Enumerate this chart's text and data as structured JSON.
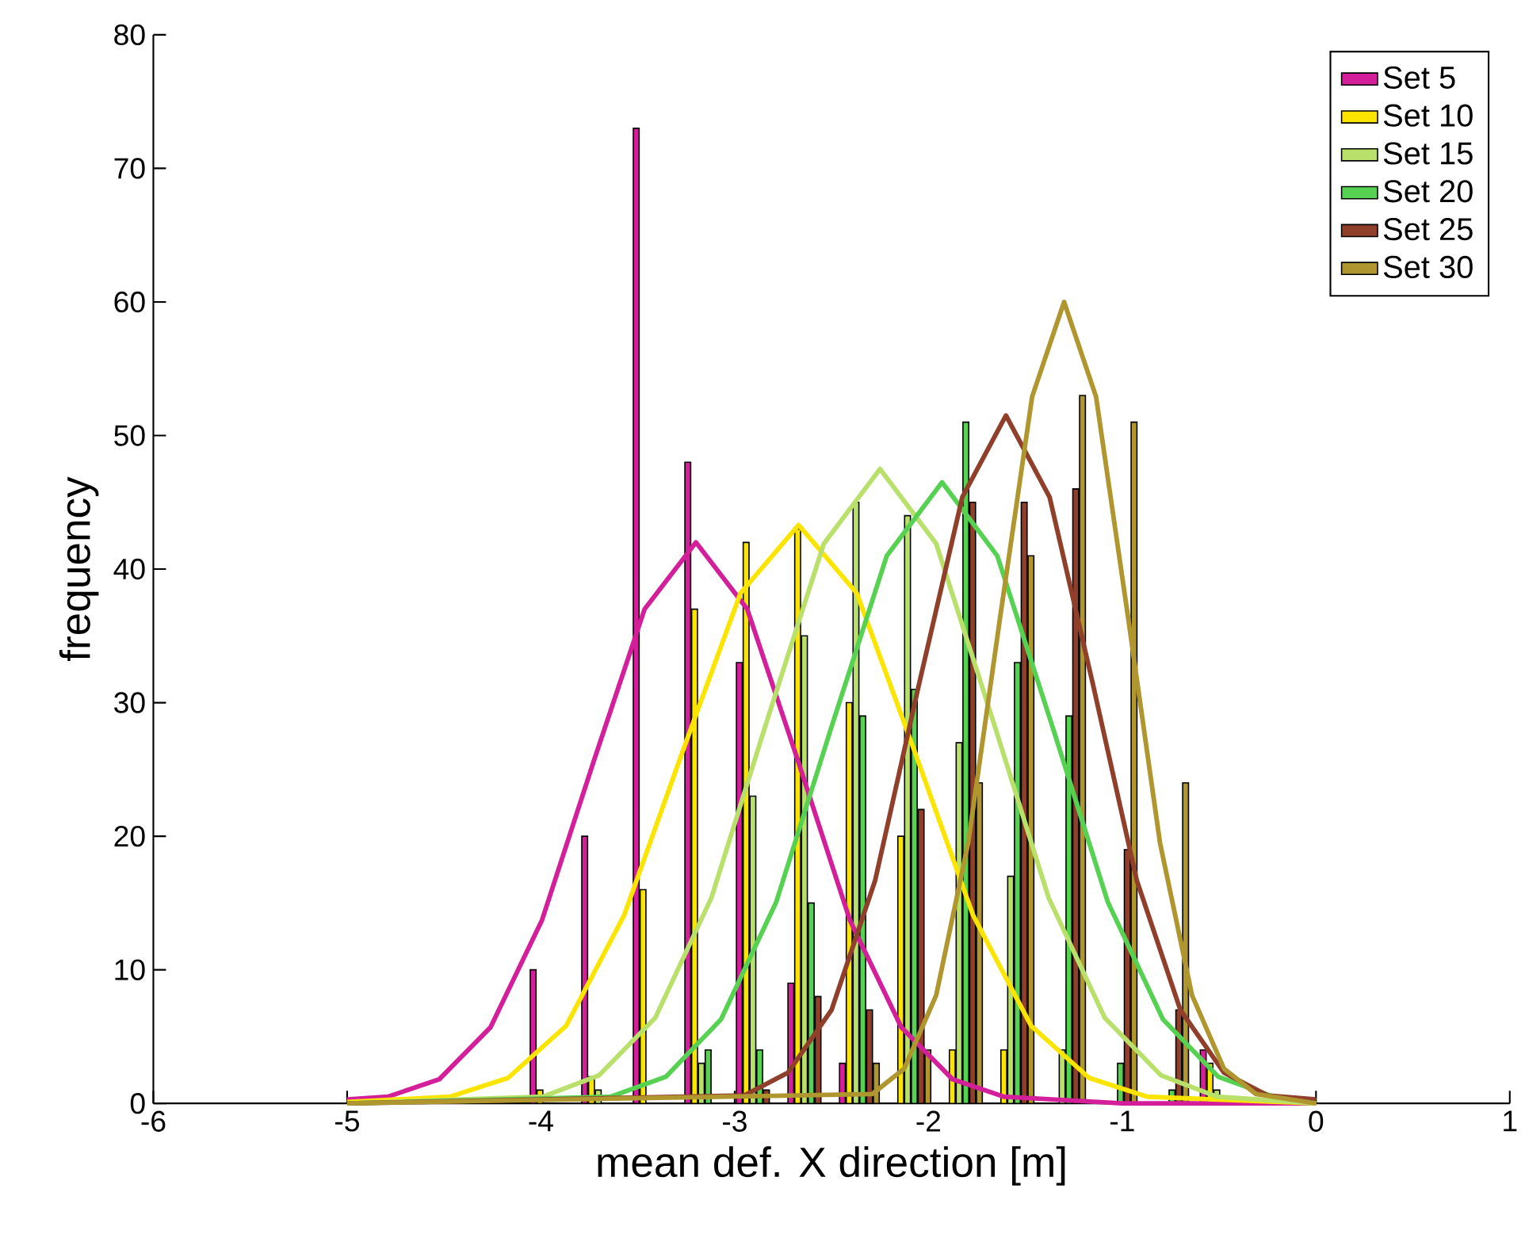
{
  "chart_data": {
    "type": "bar",
    "xlabel": "mean def. X direction [m]",
    "ylabel": "frequency",
    "xlim": [
      -6,
      1
    ],
    "xticks": [
      -6,
      -5,
      -4,
      -3,
      -2,
      -1,
      0,
      1
    ],
    "ylim": [
      0,
      80
    ],
    "yticks": [
      0,
      10,
      20,
      30,
      40,
      50,
      60,
      70,
      80
    ],
    "legend": "top right",
    "grid": false,
    "series": [
      {
        "name": "Set 5",
        "color": "#d41f9a",
        "x": [
          -4.04,
          -3.774,
          -3.508,
          -3.242,
          -2.976,
          -2.71,
          -2.444,
          -0.582
        ],
        "values": [
          10,
          20,
          73,
          48,
          33,
          9,
          3,
          4
        ]
      },
      {
        "name": "Set 10",
        "color": "#fbe500",
        "x": [
          -4.005,
          -3.739,
          -3.473,
          -3.207,
          -2.941,
          -2.675,
          -2.409,
          -2.143,
          -1.877,
          -1.611,
          -0.547
        ],
        "values": [
          1,
          2,
          16,
          37,
          42,
          43,
          30,
          20,
          4,
          4,
          3
        ]
      },
      {
        "name": "Set 15",
        "color": "#b8e06a",
        "x": [
          -3.704,
          -3.172,
          -2.906,
          -2.64,
          -2.374,
          -2.108,
          -1.842,
          -1.576,
          -1.31,
          -0.512
        ],
        "values": [
          1,
          3,
          23,
          35,
          45,
          44,
          27,
          17,
          4,
          1
        ]
      },
      {
        "name": "Set 20",
        "color": "#56d152",
        "x": [
          -3.137,
          -2.871,
          -2.605,
          -2.339,
          -2.073,
          -1.807,
          -1.541,
          -1.275,
          -1.009,
          -0.743
        ],
        "values": [
          4,
          4,
          15,
          29,
          31,
          51,
          33,
          29,
          3,
          1
        ]
      },
      {
        "name": "Set 25",
        "color": "#8f3f2a",
        "x": [
          -2.836,
          -2.57,
          -2.304,
          -2.038,
          -1.772,
          -1.506,
          -1.24,
          -0.974,
          -0.708
        ],
        "values": [
          1,
          8,
          7,
          22,
          45,
          45,
          46,
          19,
          7
        ]
      },
      {
        "name": "Set 30",
        "color": "#b0962f",
        "x": [
          -2.269,
          -2.003,
          -1.737,
          -1.471,
          -1.205,
          -0.939,
          -0.673
        ],
        "values": [
          3,
          4,
          24,
          41,
          53,
          51,
          24
        ]
      },
      {
        "type": "line",
        "color": "#d41f9a",
        "x": [
          -5,
          -4.79,
          -4.525,
          -4.26,
          -3.995,
          -3.73,
          -3.465,
          -3.2,
          -2.935,
          -2.67,
          -2.405,
          -2.14,
          -1.875,
          -1.61,
          -1,
          0
        ],
        "values": [
          0.3,
          0.5,
          1.8,
          5.7,
          13.7,
          25.5,
          37,
          42,
          37,
          25.5,
          13.7,
          5.7,
          1.8,
          0.5,
          0,
          0
        ]
      },
      {
        "type": "line",
        "color": "#fbe500",
        "x": [
          -5,
          -4.47,
          -4.17,
          -3.87,
          -3.57,
          -3.27,
          -2.97,
          -2.67,
          -2.37,
          -2.07,
          -1.77,
          -1.47,
          -1.17,
          -0.87,
          0
        ],
        "values": [
          0.1,
          0.5,
          1.9,
          5.8,
          14.1,
          26.3,
          38.2,
          43.3,
          38.2,
          26.3,
          14.1,
          5.8,
          1.9,
          0.5,
          0
        ]
      },
      {
        "type": "line",
        "color": "#b8e06a",
        "x": [
          -5,
          -3.99,
          -3.7,
          -3.41,
          -3.12,
          -2.83,
          -2.54,
          -2.25,
          -1.96,
          -1.67,
          -1.38,
          -1.09,
          -0.8,
          -0.51,
          0
        ],
        "values": [
          0,
          0.5,
          2.1,
          6.4,
          15.4,
          28.8,
          41.9,
          47.5,
          41.9,
          28.8,
          15.4,
          6.4,
          2.1,
          0.5,
          0
        ]
      },
      {
        "type": "line",
        "color": "#56d152",
        "x": [
          -5,
          -3.64,
          -3.355,
          -3.07,
          -2.785,
          -2.5,
          -2.215,
          -1.93,
          -1.645,
          -1.36,
          -1.075,
          -0.79,
          -0.505,
          -0.22,
          0
        ],
        "values": [
          0,
          0.5,
          2,
          6.3,
          15.1,
          28.2,
          41,
          46.5,
          41,
          28.2,
          15.1,
          6.3,
          2,
          0.5,
          0.2
        ]
      },
      {
        "type": "line",
        "color": "#8f3f2a",
        "x": [
          -5,
          -2.95,
          -2.725,
          -2.5,
          -2.275,
          -2.05,
          -1.825,
          -1.6,
          -1.375,
          -1.15,
          -0.925,
          -0.7,
          -0.475,
          -0.25,
          0
        ],
        "values": [
          0,
          0.6,
          2.3,
          7,
          16.7,
          31.3,
          45.4,
          51.5,
          45.4,
          31.3,
          16.7,
          7,
          2.3,
          0.6,
          0.3
        ]
      },
      {
        "type": "line",
        "color": "#b0962f",
        "x": [
          -5,
          -2.29,
          -2.125,
          -1.96,
          -1.795,
          -1.63,
          -1.465,
          -1.3,
          -1.135,
          -0.97,
          -0.805,
          -0.64,
          -0.475,
          -0.31,
          0
        ],
        "values": [
          0,
          0.7,
          2.6,
          8.1,
          19.5,
          36.4,
          52.9,
          60,
          52.9,
          36.4,
          19.5,
          8.1,
          2.6,
          0.7,
          0
        ]
      }
    ]
  }
}
